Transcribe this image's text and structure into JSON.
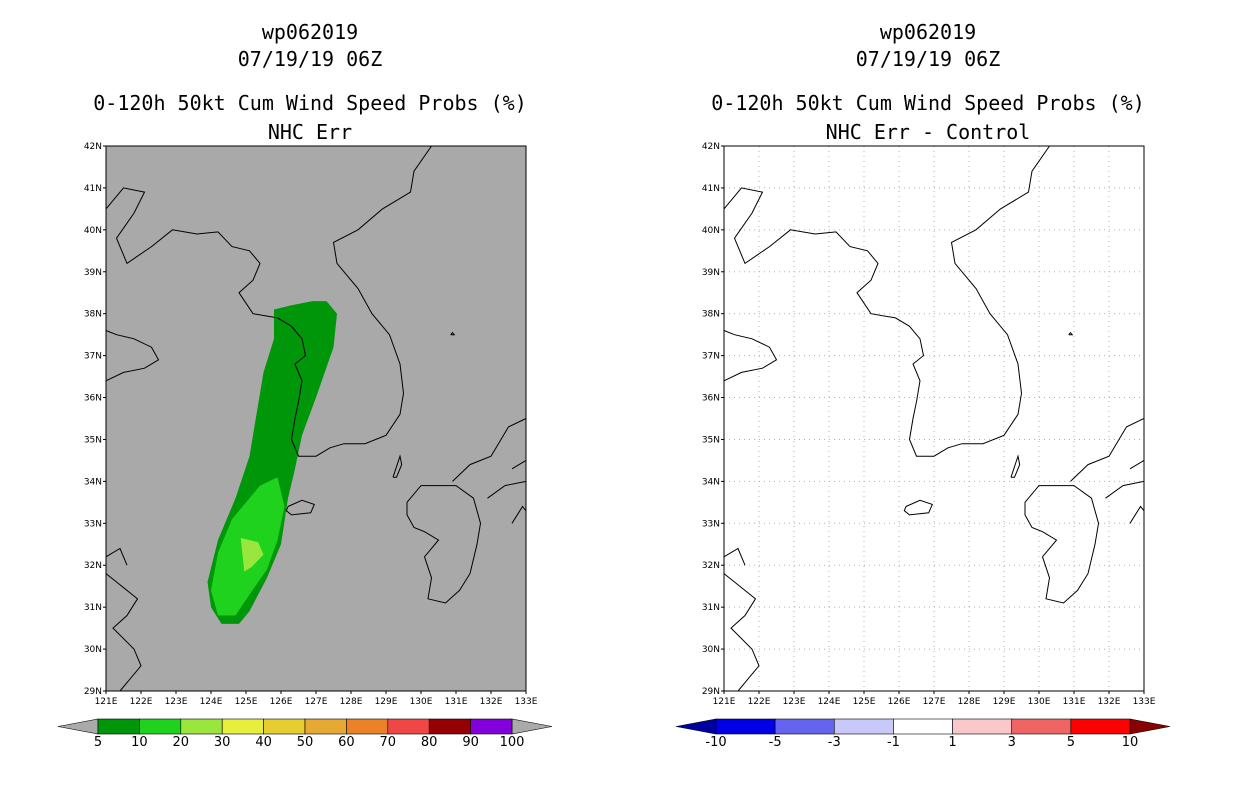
{
  "left_panel": {
    "title_line1": "wp062019",
    "title_line2": "07/19/19 06Z",
    "title_line3": "0-120h 50kt Cum Wind Speed Probs (%)",
    "title_line4": "NHC Err",
    "background_color": "#a9a9a9"
  },
  "right_panel": {
    "title_line1": "wp062019",
    "title_line2": "07/19/19 06Z",
    "title_line3": "0-120h 50kt Cum Wind Speed Probs (%)",
    "title_line4": "NHC Err - Control",
    "background_color": "#ffffff"
  },
  "axes": {
    "lat_labels": [
      "42N",
      "41N",
      "40N",
      "39N",
      "38N",
      "37N",
      "36N",
      "35N",
      "34N",
      "33N",
      "32N",
      "31N",
      "30N",
      "29N"
    ],
    "lon_labels": [
      "121E",
      "122E",
      "123E",
      "124E",
      "125E",
      "126E",
      "127E",
      "128E",
      "129E",
      "130E",
      "131E",
      "132E",
      "133E"
    ],
    "lat_range": [
      29,
      42
    ],
    "lon_range": [
      121,
      133
    ]
  },
  "left_colorbar": {
    "colors": [
      "#00960a",
      "#1ed21e",
      "#9ae63c",
      "#e6f03c",
      "#e6cd32",
      "#e6aa32",
      "#eb8228",
      "#f04646",
      "#960000",
      "#8200dc"
    ],
    "labels": [
      "5",
      "10",
      "20",
      "30",
      "40",
      "50",
      "60",
      "70",
      "80",
      "90",
      "100"
    ],
    "end_color": "#aaaaaa"
  },
  "right_colorbar": {
    "colors": [
      "#0000e6",
      "#6464f0",
      "#c8c8fa",
      "#ffffff",
      "#fac8c8",
      "#f06464",
      "#ff0000"
    ],
    "labels": [
      "-10",
      "-5",
      "-3",
      "-1",
      "1",
      "3",
      "5",
      "10"
    ],
    "low_end_color": "#0000a0",
    "high_end_color": "#8b0000"
  },
  "probability_contours": [
    {
      "level": "5",
      "color": "#00960a"
    },
    {
      "level": "10",
      "color": "#1ed21e"
    },
    {
      "level": "20",
      "color": "#9ae63c"
    }
  ]
}
